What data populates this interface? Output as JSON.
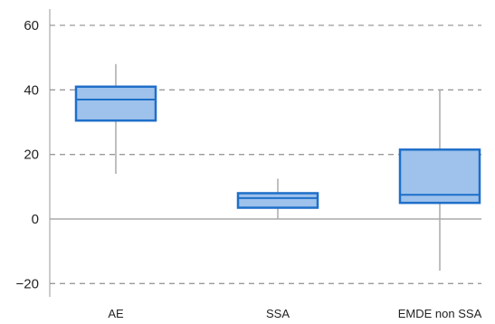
{
  "chart_data": {
    "type": "box",
    "title": "",
    "xlabel": "",
    "ylabel": "",
    "ylim": [
      -22,
      62
    ],
    "yticks": [
      -20,
      0,
      20,
      40,
      60
    ],
    "ytick_labels": [
      "−20",
      "0",
      "20",
      "40",
      "60"
    ],
    "grid": "horizontal-dashed",
    "zero_line": true,
    "categories": [
      "AE",
      "SSA",
      "EMDE non SSA"
    ],
    "boxes": [
      {
        "category": "AE",
        "min": 14,
        "q1": 30.5,
        "median": 37,
        "q3": 41,
        "max": 48
      },
      {
        "category": "SSA",
        "min": 0,
        "q1": 3.5,
        "median": 6.5,
        "q3": 8,
        "max": 12.5
      },
      {
        "category": "EMDE non SSA",
        "min": -16,
        "q1": 5,
        "median": 7.5,
        "q3": 21.5,
        "max": 40
      }
    ],
    "colors": {
      "box_fill": "#9ec2ec",
      "box_edge": "#1f6fc9",
      "whisker": "#aaaaaa",
      "grid": "#9a9a9a",
      "axis": "#999999",
      "text": "#222222"
    }
  }
}
